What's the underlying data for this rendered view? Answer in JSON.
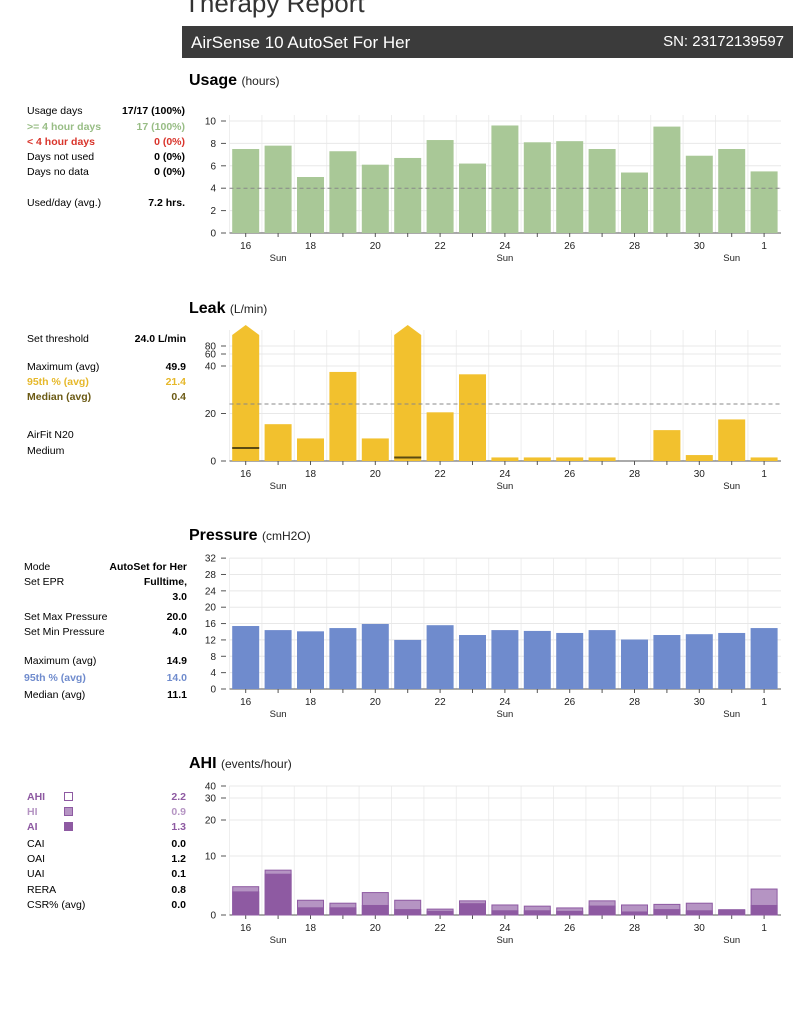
{
  "report": {
    "title": "Therapy Report",
    "device": "AirSense 10 AutoSet For Her",
    "serial": "SN: 23172139597"
  },
  "colors": {
    "usage": "#a9c897",
    "leak": "#f2c12e",
    "pressure": "#6f8bcd",
    "ahi_dark": "#8e5aa2",
    "ahi_light": "#b594c3",
    "low": "#d9342b"
  },
  "usage": {
    "heading": "Usage",
    "unit": "(hours)",
    "stats": [
      {
        "label": "Usage days",
        "value": "17/17 (100%)",
        "style": "normal"
      },
      {
        "label": ">= 4 hour days",
        "value": "17 (100%)",
        "style": "green"
      },
      {
        "label": "< 4 hour days",
        "value": "0 (0%)",
        "style": "red"
      },
      {
        "label": "Days not used",
        "value": "0 (0%)",
        "style": "normal"
      },
      {
        "label": "Days no data",
        "value": "0 (0%)",
        "style": "normal"
      },
      {
        "label": "Used/day (avg.)",
        "value": "7.2 hrs.",
        "style": "normal"
      }
    ]
  },
  "leak": {
    "heading": "Leak",
    "unit": "(L/min)",
    "stats": [
      {
        "label": "Set threshold",
        "value": "24.0 L/min",
        "style": "normal"
      },
      {
        "label": "Maximum (avg)",
        "value": "49.9",
        "style": "normal"
      },
      {
        "label": "95th % (avg)",
        "value": "21.4",
        "style": "yellow"
      },
      {
        "label": "Median (avg)",
        "value": "0.4",
        "style": "olive"
      }
    ],
    "mask": "AirFit N20",
    "mask_size": "Medium"
  },
  "pressure": {
    "heading": "Pressure",
    "unit": "(cmH2O)",
    "stats": [
      {
        "label": "Mode",
        "value": "AutoSet for Her",
        "style": "normal"
      },
      {
        "label": "Set EPR",
        "value": "Fulltime,",
        "style": "normal"
      },
      {
        "label": "",
        "value": "3.0",
        "style": "normal"
      },
      {
        "label": "Set Max Pressure",
        "value": "20.0",
        "style": "normal"
      },
      {
        "label": "Set Min Pressure",
        "value": "4.0",
        "style": "normal"
      },
      {
        "label": "Maximum (avg)",
        "value": "14.9",
        "style": "normal"
      },
      {
        "label": "95th % (avg)",
        "value": "14.0",
        "style": "blue"
      },
      {
        "label": "Median (avg)",
        "value": "11.1",
        "style": "normal"
      }
    ]
  },
  "ahi": {
    "heading": "AHI",
    "unit": "(events/hour)",
    "stats": [
      {
        "label": "AHI",
        "value": "2.2",
        "style": "purple"
      },
      {
        "label": "HI",
        "value": "0.9",
        "style": "lilac"
      },
      {
        "label": "AI",
        "value": "1.3",
        "style": "purple"
      },
      {
        "label": "CAI",
        "value": "0.0",
        "style": "normal"
      },
      {
        "label": "OAI",
        "value": "1.2",
        "style": "normal"
      },
      {
        "label": "UAI",
        "value": "0.1",
        "style": "normal"
      },
      {
        "label": "RERA",
        "value": "0.8",
        "style": "normal"
      },
      {
        "label": "CSR% (avg)",
        "value": "0.0",
        "style": "normal"
      }
    ]
  },
  "chart_data": [
    {
      "id": "usage",
      "type": "bar",
      "categories": [
        "16",
        "17",
        "18",
        "19",
        "20",
        "21",
        "22",
        "23",
        "24",
        "25",
        "26",
        "27",
        "28",
        "29",
        "30",
        "31",
        "1"
      ],
      "x_tick_labels": [
        "16",
        "",
        "18",
        "",
        "20",
        "",
        "22",
        "",
        "24",
        "",
        "26",
        "",
        "28",
        "",
        "30",
        "",
        "1"
      ],
      "x_day_labels": [
        "",
        "Sun",
        "",
        "",
        "",
        "",
        "",
        "",
        "Sun",
        "",
        "",
        "",
        "",
        "",
        "",
        "Sun",
        ""
      ],
      "values": [
        7.5,
        7.8,
        5.0,
        7.3,
        6.1,
        6.7,
        8.3,
        6.2,
        9.6,
        8.1,
        8.2,
        7.5,
        5.4,
        9.5,
        6.9,
        7.5,
        5.5
      ],
      "yticks": [
        0,
        2,
        4,
        6,
        8,
        10
      ],
      "ylim": [
        0,
        11
      ],
      "threshold": 4,
      "color": "#a9c897"
    },
    {
      "id": "leak",
      "type": "bar",
      "categories": [
        "16",
        "17",
        "18",
        "19",
        "20",
        "21",
        "22",
        "23",
        "24",
        "25",
        "26",
        "27",
        "28",
        "29",
        "30",
        "31",
        "1"
      ],
      "x_tick_labels": [
        "16",
        "",
        "18",
        "",
        "20",
        "",
        "22",
        "",
        "24",
        "",
        "26",
        "",
        "28",
        "",
        "30",
        "",
        "1"
      ],
      "x_day_labels": [
        "",
        "Sun",
        "",
        "",
        "",
        "",
        "",
        "",
        "Sun",
        "",
        "",
        "",
        "",
        "",
        "",
        "Sun",
        ""
      ],
      "values": [
        80,
        15.5,
        9.5,
        37.5,
        9.5,
        80,
        20.5,
        36.5,
        1.5,
        1.5,
        1.5,
        1.5,
        0,
        13,
        2.5,
        17.5,
        1.5
      ],
      "clipped": [
        true,
        false,
        false,
        false,
        false,
        true,
        false,
        false,
        false,
        false,
        false,
        false,
        false,
        false,
        false,
        false,
        false
      ],
      "median": [
        5.5,
        0,
        0,
        0,
        0,
        1.5,
        0,
        0,
        0,
        0,
        0,
        0,
        0,
        0,
        0,
        0,
        0
      ],
      "yticks": [
        0,
        20,
        40,
        60,
        80
      ],
      "scale": "compressed-above-40",
      "threshold": 24,
      "color": "#f2c12e"
    },
    {
      "id": "pressure",
      "type": "bar",
      "categories": [
        "16",
        "17",
        "18",
        "19",
        "20",
        "21",
        "22",
        "23",
        "24",
        "25",
        "26",
        "27",
        "28",
        "29",
        "30",
        "31",
        "1"
      ],
      "x_tick_labels": [
        "16",
        "",
        "18",
        "",
        "20",
        "",
        "22",
        "",
        "24",
        "",
        "26",
        "",
        "28",
        "",
        "30",
        "",
        "1"
      ],
      "x_day_labels": [
        "",
        "Sun",
        "",
        "",
        "",
        "",
        "",
        "",
        "Sun",
        "",
        "",
        "",
        "",
        "",
        "",
        "Sun",
        ""
      ],
      "values": [
        15.4,
        14.4,
        14.1,
        14.9,
        15.9,
        12.0,
        15.6,
        13.2,
        14.4,
        14.2,
        13.7,
        14.4,
        12.1,
        13.2,
        13.4,
        13.7,
        14.9
      ],
      "yticks": [
        0,
        4,
        8,
        12,
        16,
        20,
        24,
        28,
        32
      ],
      "ylim": [
        0,
        32
      ],
      "color": "#6f8bcd"
    },
    {
      "id": "ahi",
      "type": "bar",
      "categories": [
        "16",
        "17",
        "18",
        "19",
        "20",
        "21",
        "22",
        "23",
        "24",
        "25",
        "26",
        "27",
        "28",
        "29",
        "30",
        "31",
        "1"
      ],
      "x_tick_labels": [
        "16",
        "",
        "18",
        "",
        "20",
        "",
        "22",
        "",
        "24",
        "",
        "26",
        "",
        "28",
        "",
        "30",
        "",
        "1"
      ],
      "x_day_labels": [
        "",
        "Sun",
        "",
        "",
        "",
        "",
        "",
        "",
        "Sun",
        "",
        "",
        "",
        "",
        "",
        "",
        "Sun",
        ""
      ],
      "series": [
        {
          "name": "AI",
          "values": [
            4.0,
            7.0,
            1.3,
            1.3,
            1.7,
            1.0,
            0.7,
            2.0,
            0.8,
            0.8,
            0.7,
            1.6,
            0.6,
            1.0,
            0.8,
            0.9,
            1.7
          ]
        },
        {
          "name": "AHI",
          "values": [
            4.8,
            7.6,
            2.5,
            2.0,
            3.8,
            2.5,
            1.0,
            2.4,
            1.7,
            1.5,
            1.2,
            2.4,
            1.7,
            1.8,
            2.0,
            0.9,
            4.4
          ]
        }
      ],
      "yticks": [
        0,
        10,
        20,
        30,
        40
      ],
      "scale": "compressed-above-10",
      "color_ai": "#8e5aa2",
      "color_hi": "#b594c3"
    }
  ]
}
